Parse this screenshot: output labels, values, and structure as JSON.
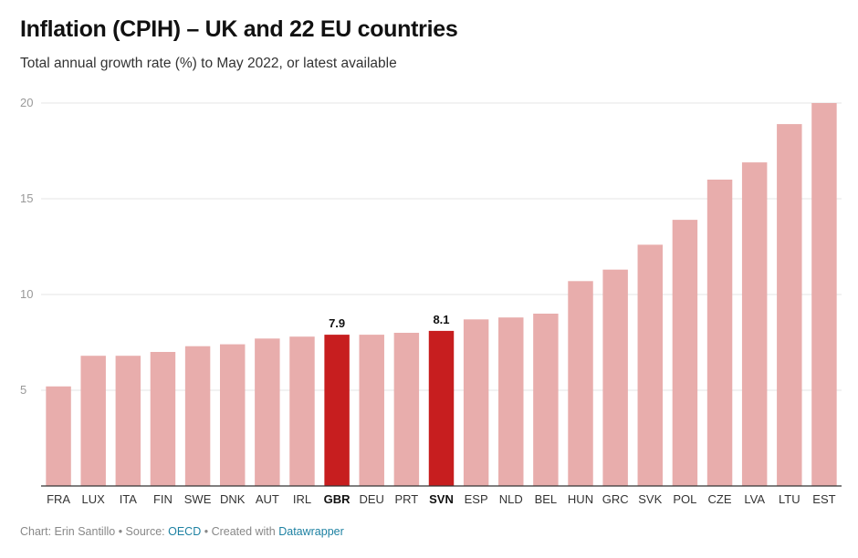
{
  "title": "Inflation (CPIH) – UK and 22 EU countries",
  "subtitle": "Total annual growth rate (%) to May 2022, or latest available",
  "footer": {
    "author": "Chart: Erin Santillo",
    "separator": " • ",
    "source_prefix": "Source: ",
    "source_name": "OECD",
    "created_prefix": "Created with ",
    "created_tool": "Datawrapper"
  },
  "colors": {
    "bar": "#e8adac",
    "highlight": "#c71e1f",
    "grid": "#e4e4e4",
    "baseline": "#333333"
  },
  "chart_data": {
    "type": "bar",
    "title": "Inflation (CPIH) – UK and 22 EU countries",
    "subtitle": "Total annual growth rate (%) to May 2022, or latest available",
    "xlabel": "",
    "ylabel": "",
    "ylim": [
      0,
      20
    ],
    "yticks": [
      5,
      10,
      15,
      20
    ],
    "grid": true,
    "categories": [
      "FRA",
      "LUX",
      "ITA",
      "FIN",
      "SWE",
      "DNK",
      "AUT",
      "IRL",
      "GBR",
      "DEU",
      "PRT",
      "SVN",
      "ESP",
      "NLD",
      "BEL",
      "HUN",
      "GRC",
      "SVK",
      "POL",
      "CZE",
      "LVA",
      "LTU",
      "EST"
    ],
    "values": [
      5.2,
      6.8,
      6.8,
      7.0,
      7.3,
      7.4,
      7.7,
      7.8,
      7.9,
      7.9,
      8.0,
      8.1,
      8.7,
      8.8,
      9.0,
      10.7,
      11.3,
      12.6,
      13.9,
      16.0,
      16.9,
      18.9,
      20.0
    ],
    "highlighted": [
      "GBR",
      "SVN"
    ],
    "data_labels": {
      "GBR": "7.9",
      "SVN": "8.1"
    }
  }
}
